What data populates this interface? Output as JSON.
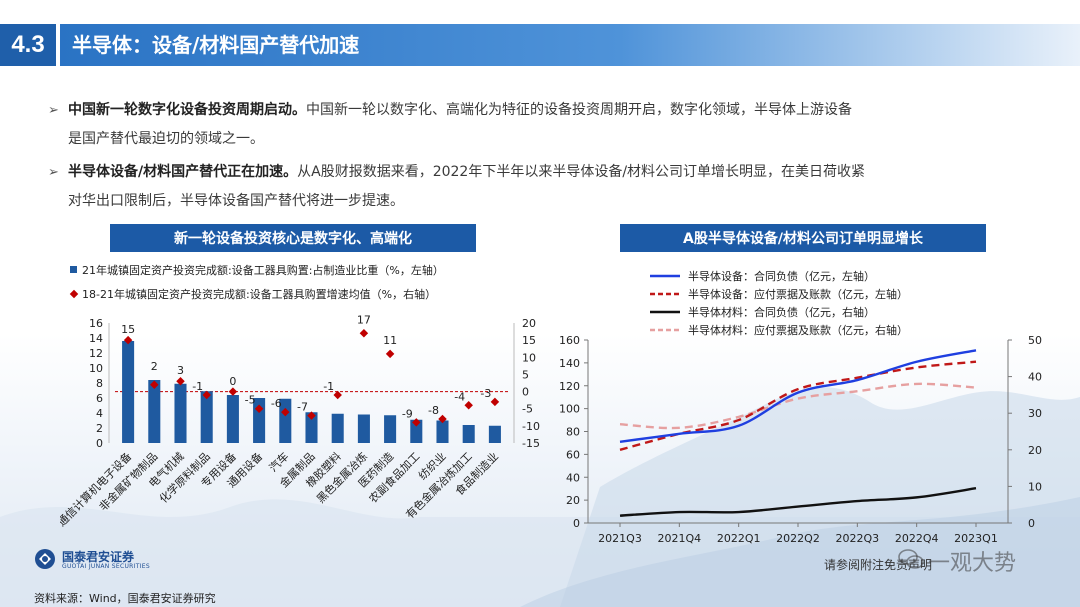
{
  "header": {
    "number": "4.3",
    "title": "半导体：设备/材料国产替代加速"
  },
  "bullets": [
    {
      "bold": "中国新一轮数字化设备投资周期启动。",
      "text": "中国新一轮以数字化、高端化为特征的设备投资周期开启，数字化领域，半导体上游设备",
      "text2": "是国产替代最迫切的领域之一。"
    },
    {
      "bold": "半导体设备/材料国产替代正在加速。",
      "text": "从A股财报数据来看，2022年下半年以来半导体设备/材料公司订单增长明显，在美日荷收紧",
      "text2": "对华出口限制后，半导体设备国产替代将进一步提速。"
    }
  ],
  "left_chart_title": "新一轮设备投资核心是数字化、高端化",
  "right_chart_title": "A股半导体设备/材料公司订单明显增长",
  "footer": {
    "logo_cn": "国泰君安证券",
    "logo_en": "GUOTAI JUNAN SECURITIES",
    "source": "资料来源：Wind，国泰君安证券研究",
    "disclaimer": "请参阅附注免责声明",
    "watermark": "一观大势"
  },
  "colors": {
    "accent": "#1f5faa",
    "bar": "#1f5aa0",
    "dot": "#c00000"
  },
  "chart_data": [
    {
      "type": "bar",
      "legend": [
        "21年城镇固定资产投资完成额:设备工器具购置:占制造业比重（%，左轴）",
        "18-21年城镇固定资产投资完成额:设备工器具购置增速均值（%，右轴）"
      ],
      "categories": [
        "通信计算机电子设备",
        "非金属矿物制品",
        "电气机械",
        "化学原料制品",
        "专用设备",
        "通用设备",
        "汽车",
        "金属制品",
        "橡胶塑料",
        "黑色金属冶炼",
        "医药制造",
        "农副食品加工",
        "纺织业",
        "有色金属冶炼加工",
        "食品制造业"
      ],
      "bar_values": [
        13.6,
        8.4,
        7.9,
        6.9,
        6.4,
        6.0,
        5.9,
        4.1,
        3.9,
        3.8,
        3.7,
        3.1,
        3.0,
        2.4,
        2.3
      ],
      "dot_values": [
        15,
        2,
        3,
        -1,
        0,
        -5,
        -6,
        -7,
        -1,
        17,
        11,
        -9,
        -8,
        -4,
        -3
      ],
      "dot_labels": [
        "15",
        "2",
        "3",
        "-1",
        "0",
        "-5",
        "-6",
        "-7",
        "-1",
        "17",
        "11",
        "-9",
        "-8",
        "-4",
        "-3"
      ],
      "left_ticks": [
        "16",
        "14",
        "12",
        "10",
        "8",
        "6",
        "4",
        "2",
        "0"
      ],
      "right_ticks": [
        "20",
        "15",
        "10",
        "5",
        "0",
        "-5",
        "-10",
        "-15"
      ],
      "ylim_left": [
        0,
        16
      ],
      "ylim_right": [
        -15,
        20
      ]
    },
    {
      "type": "line",
      "x": [
        "2021Q3",
        "2021Q4",
        "2022Q1",
        "2022Q2",
        "2022Q3",
        "2022Q4",
        "2023Q1"
      ],
      "left_ticks": [
        "160",
        "140",
        "120",
        "100",
        "80",
        "60",
        "40",
        "20",
        "0"
      ],
      "right_ticks": [
        "50",
        "40",
        "30",
        "20",
        "10",
        "0"
      ],
      "ylim_left": [
        0,
        160
      ],
      "ylim_right": [
        0,
        50
      ],
      "series": [
        {
          "name": "半导体设备：合同负债（亿元，左轴）",
          "axis": "left",
          "color": "#1f3fe0",
          "dash": "solid",
          "values": [
            71,
            78,
            85,
            114,
            125,
            141,
            151
          ]
        },
        {
          "name": "半导体设备：应付票据及账款（亿元，左轴）",
          "axis": "left",
          "color": "#c01818",
          "dash": "dashed",
          "values": [
            64,
            78,
            90,
            117,
            127,
            136,
            141
          ]
        },
        {
          "name": "半导体材料：合同负债（亿元，右轴）",
          "axis": "right",
          "color": "#111111",
          "dash": "solid",
          "values": [
            2,
            3,
            3,
            4.5,
            6,
            7,
            9.5
          ]
        },
        {
          "name": "半导体材料：应付票据及账款（亿元，右轴）",
          "axis": "right",
          "color": "#e6a0a0",
          "dash": "dashed",
          "values": [
            27,
            26,
            29,
            34,
            36,
            38,
            37
          ]
        }
      ]
    }
  ]
}
